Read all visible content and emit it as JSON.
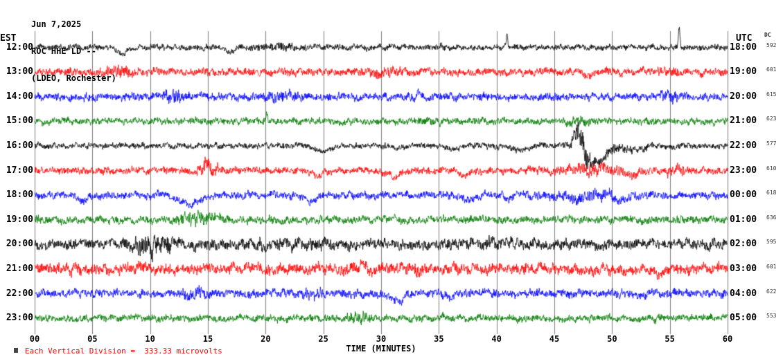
{
  "header": {
    "date": "Jun 7,2025",
    "station": "ROC HHE LD --",
    "location": "(LDEO, Rochester)"
  },
  "axes": {
    "left_label": "EST",
    "right_label": "UTC",
    "dc_label": "DC",
    "x_label": "TIME (MINUTES)",
    "x_ticks": [
      "00",
      "05",
      "10",
      "15",
      "20",
      "25",
      "30",
      "35",
      "40",
      "45",
      "50",
      "55",
      "60"
    ]
  },
  "footer": {
    "note": "Each Vertical Division =  333.33 microvolts"
  },
  "colors": {
    "black": "#000000",
    "red": "#ff0000",
    "blue": "#0000ff",
    "green": "#007a00",
    "grid": "#7d7d7d",
    "note": "#ff0000"
  },
  "chart_data": {
    "type": "line",
    "title": "ROC HHE LD -- (LDEO, Rochester) helicorder Jun 7,2025",
    "xlabel": "TIME (MINUTES)",
    "x_range": [
      0,
      60
    ],
    "x_tick_step_minutes": 5,
    "grid": "vertical-only",
    "rows": [
      {
        "est": "12:00",
        "utc": "18:00",
        "dc": "592",
        "color": "black",
        "amp": 3.5,
        "events": [
          {
            "type": "off",
            "t": 7.6,
            "d": 0.5,
            "a": 9
          },
          {
            "type": "off",
            "t": 16.9,
            "d": 0.7,
            "a": 6
          },
          {
            "type": "burst",
            "t": 21,
            "d": 2,
            "a": 2
          },
          {
            "type": "off",
            "t": 40.9,
            "d": 0.08,
            "a": -18
          },
          {
            "type": "off",
            "t": 55.8,
            "d": 0.1,
            "a": -30
          }
        ]
      },
      {
        "est": "13:00",
        "utc": "19:00",
        "dc": "601",
        "color": "red",
        "amp": 4.5,
        "events": [
          {
            "type": "burst",
            "t": 7,
            "d": 1.5,
            "a": 3
          },
          {
            "type": "burst",
            "t": 30,
            "d": 1.5,
            "a": 2.5
          },
          {
            "type": "off",
            "t": 48,
            "d": 0.6,
            "a": 7
          },
          {
            "type": "burst",
            "t": 55,
            "d": 1,
            "a": 2
          }
        ]
      },
      {
        "est": "14:00",
        "utc": "20:00",
        "dc": "615",
        "color": "blue",
        "amp": 4.5,
        "events": [
          {
            "type": "burst",
            "t": 12,
            "d": 0.8,
            "a": 5
          },
          {
            "type": "burst",
            "t": 21.5,
            "d": 1.5,
            "a": 2.5
          },
          {
            "type": "off",
            "t": 33.2,
            "d": 0.12,
            "a": -10
          },
          {
            "type": "burst",
            "t": 55,
            "d": 1.2,
            "a": 3
          }
        ]
      },
      {
        "est": "15:00",
        "utc": "21:00",
        "dc": "623",
        "color": "green",
        "amp": 4,
        "events": [
          {
            "type": "off",
            "t": 20.1,
            "d": 0.1,
            "a": -13
          },
          {
            "type": "burst",
            "t": 47,
            "d": 1.5,
            "a": 1.5
          }
        ]
      },
      {
        "est": "16:00",
        "utc": "22:00",
        "dc": "577",
        "color": "black",
        "amp": 3.5,
        "events": [
          {
            "type": "off",
            "t": 25,
            "d": 0.9,
            "a": 7
          },
          {
            "type": "off",
            "t": 31.5,
            "d": 0.7,
            "a": 5
          },
          {
            "type": "off",
            "t": 36.2,
            "d": 0.5,
            "a": 5
          },
          {
            "type": "off",
            "t": 42,
            "d": 1.0,
            "a": 7
          },
          {
            "type": "burst",
            "t": 47.4,
            "d": 0.8,
            "a": 14
          },
          {
            "type": "off",
            "t": 47.0,
            "d": 0.45,
            "a": -18
          },
          {
            "type": "off",
            "t": 48.6,
            "d": 1.1,
            "a": 26
          },
          {
            "type": "burst",
            "t": 50.5,
            "d": 2.0,
            "a": 3
          },
          {
            "type": "off",
            "t": 51.5,
            "d": 1.2,
            "a": 6
          }
        ]
      },
      {
        "est": "17:00",
        "utc": "23:00",
        "dc": "610",
        "color": "red",
        "amp": 4.2,
        "events": [
          {
            "type": "burst",
            "t": 15,
            "d": 0.8,
            "a": 7
          },
          {
            "type": "off",
            "t": 14.9,
            "d": 0.4,
            "a": -8
          },
          {
            "type": "off",
            "t": 24.5,
            "d": 0.6,
            "a": 8
          },
          {
            "type": "off",
            "t": 31,
            "d": 0.7,
            "a": 9
          },
          {
            "type": "off",
            "t": 37.2,
            "d": 0.6,
            "a": 7
          },
          {
            "type": "burst",
            "t": 48,
            "d": 3,
            "a": 4
          },
          {
            "type": "off",
            "t": 51.8,
            "d": 0.5,
            "a": 8
          },
          {
            "type": "burst",
            "t": 55.5,
            "d": 0.8,
            "a": 4
          }
        ]
      },
      {
        "est": "18:00",
        "utc": "00:00",
        "dc": "618",
        "color": "blue",
        "amp": 4.5,
        "events": [
          {
            "type": "off",
            "t": 4.2,
            "d": 0.5,
            "a": 9
          },
          {
            "type": "off",
            "t": 13.6,
            "d": 1.2,
            "a": 14
          },
          {
            "type": "off",
            "t": 24,
            "d": 0.6,
            "a": 9
          },
          {
            "type": "off",
            "t": 37.5,
            "d": 0.8,
            "a": 8
          },
          {
            "type": "off",
            "t": 41,
            "d": 0.5,
            "a": 6
          },
          {
            "type": "burst",
            "t": 48,
            "d": 3,
            "a": 4
          },
          {
            "type": "off",
            "t": 47,
            "d": 0.5,
            "a": 9
          },
          {
            "type": "off",
            "t": 50.8,
            "d": 0.6,
            "a": 11
          }
        ]
      },
      {
        "est": "19:00",
        "utc": "01:00",
        "dc": "636",
        "color": "green",
        "amp": 4.5,
        "events": [
          {
            "type": "burst",
            "t": 14,
            "d": 1.8,
            "a": 5
          },
          {
            "type": "off",
            "t": 31.2,
            "d": 0.15,
            "a": -8
          }
        ]
      },
      {
        "est": "20:00",
        "utc": "02:00",
        "dc": "595",
        "color": "black",
        "amp": 6,
        "events": [
          {
            "type": "burst",
            "t": 10,
            "d": 1.8,
            "a": 8
          },
          {
            "type": "burst",
            "t": 22,
            "d": 3,
            "a": 2
          },
          {
            "type": "burst",
            "t": 40,
            "d": 4,
            "a": 1.5
          }
        ]
      },
      {
        "est": "21:00",
        "utc": "03:00",
        "dc": "601",
        "color": "red",
        "amp": 6.5,
        "events": [
          {
            "type": "off",
            "t": 54,
            "d": 0.6,
            "a": 9
          },
          {
            "type": "burst",
            "t": 30,
            "d": 5,
            "a": 1
          }
        ]
      },
      {
        "est": "22:00",
        "utc": "04:00",
        "dc": "622",
        "color": "blue",
        "amp": 5,
        "events": [
          {
            "type": "burst",
            "t": 14,
            "d": 1,
            "a": 3
          },
          {
            "type": "burst",
            "t": 24,
            "d": 1,
            "a": 3
          },
          {
            "type": "off",
            "t": 31.5,
            "d": 0.8,
            "a": 11
          },
          {
            "type": "off",
            "t": 36,
            "d": 0.4,
            "a": 5
          }
        ]
      },
      {
        "est": "23:00",
        "utc": "05:00",
        "dc": "553",
        "color": "green",
        "amp": 4.2,
        "events": [
          {
            "type": "burst",
            "t": 28,
            "d": 0.8,
            "a": 5
          }
        ]
      }
    ]
  }
}
